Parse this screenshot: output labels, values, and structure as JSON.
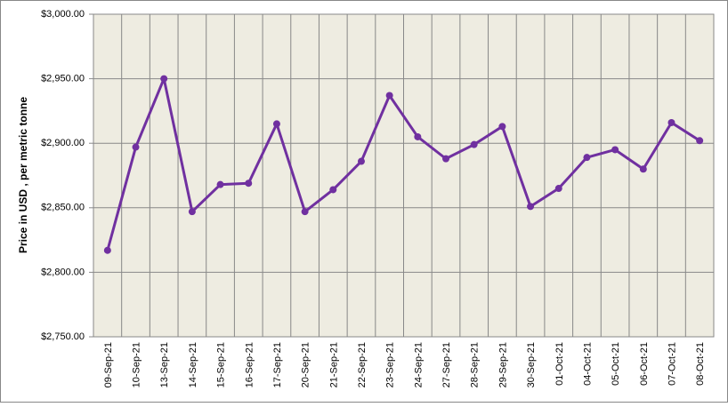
{
  "chart_data": {
    "type": "line",
    "y_label": "Price in USD , per metric tonne",
    "categories": [
      "09-Sep-21",
      "10-Sep-21",
      "13-Sep-21",
      "14-Sep-21",
      "15-Sep-21",
      "16-Sep-21",
      "17-Sep-21",
      "20-Sep-21",
      "21-Sep-21",
      "22-Sep-21",
      "23-Sep-21",
      "24-Sep-21",
      "27-Sep-21",
      "28-Sep-21",
      "29-Sep-21",
      "30-Sep-21",
      "01-Oct-21",
      "04-Oct-21",
      "05-Oct-21",
      "06-Oct-21",
      "07-Oct-21",
      "08-Oct-21"
    ],
    "values": [
      2817,
      2897,
      2950,
      2847,
      2868,
      2869,
      2915,
      2847,
      2864,
      2886,
      2937,
      2905,
      2888,
      2899,
      2913,
      2851,
      2865,
      2889,
      2895,
      2880,
      2916,
      2902
    ],
    "color": "#7030a0",
    "ylim": [
      2750,
      3000
    ],
    "yticks": [
      {
        "value": 2750,
        "label": "$2,750.00"
      },
      {
        "value": 2800,
        "label": "$2,800.00"
      },
      {
        "value": 2850,
        "label": "$2,850.00"
      },
      {
        "value": 2900,
        "label": "$2,900.00"
      },
      {
        "value": 2950,
        "label": "$2,950.00"
      },
      {
        "value": 3000,
        "label": "$3,000.00"
      }
    ],
    "grid": true
  }
}
